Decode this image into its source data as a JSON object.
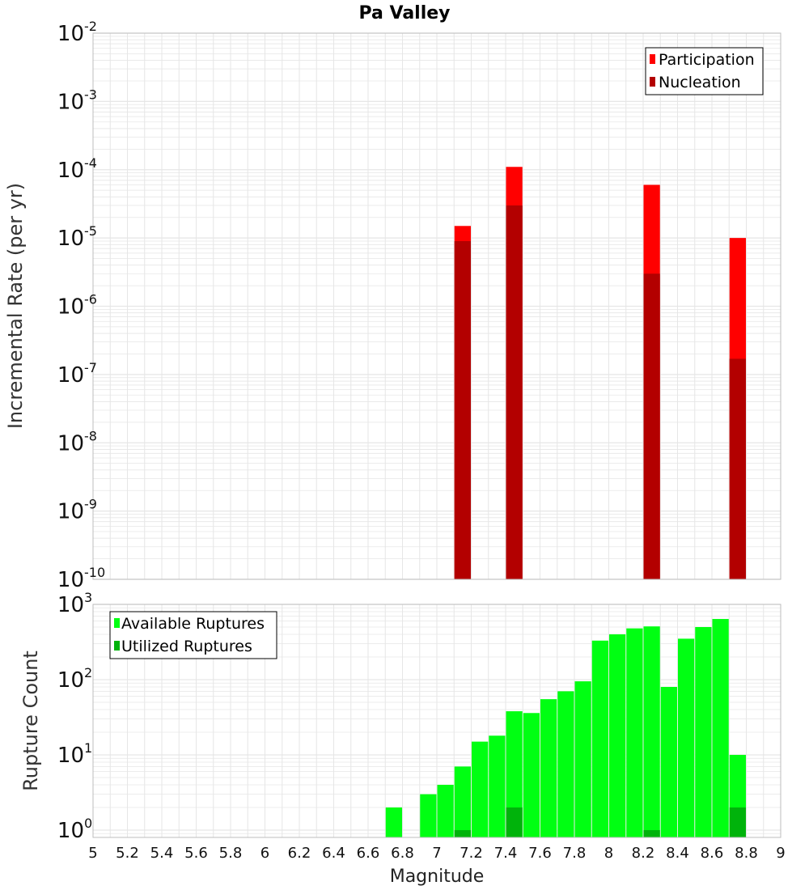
{
  "title": "Pa Valley",
  "xlabel": "Magnitude",
  "colors": {
    "participation": "#ff0000",
    "nucleation": "#b30000",
    "available": "#00ff12",
    "utilized": "#00b30b",
    "grid": "#e6e6e6",
    "frame": "#bdbdbd"
  },
  "chart_data": [
    {
      "type": "bar",
      "ylabel": "Incremental Rate (per yr)",
      "yscale": "log",
      "xlim": [
        5,
        9
      ],
      "ylim": [
        1e-10,
        0.01
      ],
      "y_tick_exponents": [
        "-2",
        "-3",
        "-4",
        "-5",
        "-6",
        "-7",
        "-8",
        "-9",
        "-10"
      ],
      "legend": {
        "position": "top-right",
        "entries": [
          "Participation",
          "Nucleation"
        ]
      },
      "series": [
        {
          "name": "Participation",
          "x": [
            7.15,
            7.45,
            8.25,
            8.75
          ],
          "values": [
            1.5e-05,
            0.00011,
            6e-05,
            1e-05
          ]
        },
        {
          "name": "Nucleation",
          "x": [
            7.15,
            7.45,
            8.25,
            8.75
          ],
          "values": [
            9e-06,
            3e-05,
            3e-06,
            1.7e-07
          ]
        }
      ]
    },
    {
      "type": "bar",
      "ylabel": "Rupture Count",
      "yscale": "log",
      "xlim": [
        5,
        9
      ],
      "ylim": [
        0.8,
        1000
      ],
      "y_tick_exponents": [
        "3",
        "2",
        "1",
        "0"
      ],
      "legend": {
        "position": "top-left",
        "entries": [
          "Available Ruptures",
          "Utilized Ruptures"
        ]
      },
      "series": [
        {
          "name": "Available Ruptures",
          "x": [
            6.75,
            6.95,
            7.05,
            7.15,
            7.25,
            7.35,
            7.45,
            7.55,
            7.65,
            7.75,
            7.85,
            7.95,
            8.05,
            8.15,
            8.25,
            8.35,
            8.45,
            8.55,
            8.65,
            8.75
          ],
          "values": [
            2,
            3,
            4,
            7,
            15,
            18,
            38,
            36,
            55,
            70,
            95,
            330,
            400,
            480,
            510,
            80,
            350,
            500,
            640,
            10
          ]
        },
        {
          "name": "Utilized Ruptures",
          "x": [
            7.15,
            7.45,
            8.25,
            8.75
          ],
          "values": [
            1,
            2,
            1,
            2
          ]
        }
      ],
      "x_ticks": [
        "5",
        "5.2",
        "5.4",
        "5.6",
        "5.8",
        "6",
        "6.2",
        "6.4",
        "6.6",
        "6.8",
        "7",
        "7.2",
        "7.4",
        "7.6",
        "7.8",
        "8",
        "8.2",
        "8.4",
        "8.6",
        "8.8",
        "9"
      ]
    }
  ]
}
